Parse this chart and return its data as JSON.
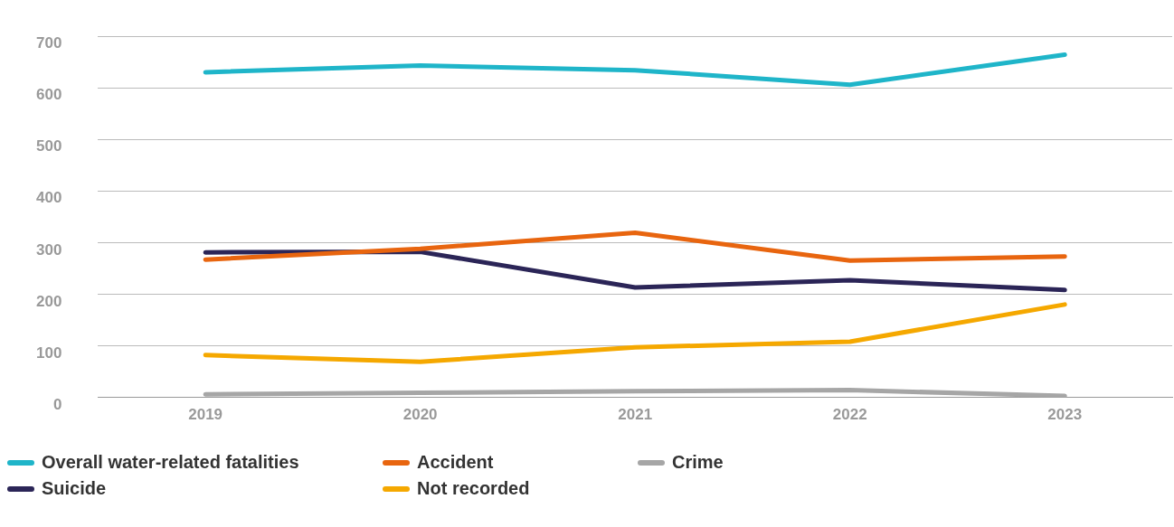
{
  "chart_data": {
    "type": "line",
    "categories": [
      "2019",
      "2020",
      "2021",
      "2022",
      "2023"
    ],
    "series": [
      {
        "name": "Overall water-related fatalities",
        "color": "#1fb5c9",
        "values": [
          630,
          643,
          634,
          606,
          664
        ]
      },
      {
        "name": "Accident",
        "color": "#e8650f",
        "values": [
          267,
          288,
          319,
          265,
          273
        ]
      },
      {
        "name": "Crime",
        "color": "#a6a6a6",
        "values": [
          6,
          9,
          12,
          14,
          3
        ]
      },
      {
        "name": "Suicide",
        "color": "#2b2557",
        "values": [
          281,
          282,
          213,
          227,
          208
        ]
      },
      {
        "name": "Not recorded",
        "color": "#f5a800",
        "values": [
          82,
          69,
          97,
          108,
          180
        ]
      }
    ],
    "ylim": [
      0,
      700
    ],
    "yticks": [
      0,
      100,
      200,
      300,
      400,
      500,
      600,
      700
    ],
    "grid": "y",
    "legend": "bottom",
    "marker": "none",
    "line_style": "solid"
  }
}
